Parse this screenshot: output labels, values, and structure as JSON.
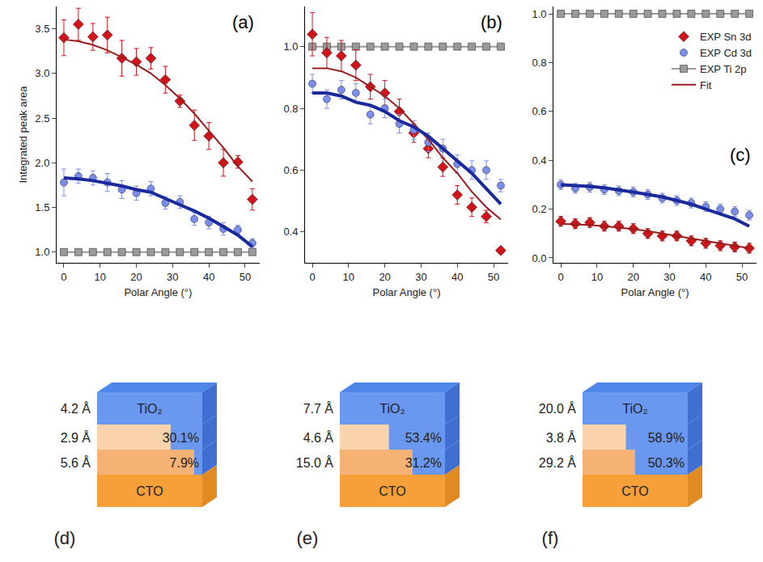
{
  "chart_data": [
    {
      "type": "scatter",
      "annotation": "(a)",
      "xlabel": "Polar Angle (°)",
      "ylabel": "Integrated peak area",
      "grid": false,
      "xlim": [
        -2,
        54
      ],
      "xticks": [
        0,
        10,
        20,
        30,
        40,
        50
      ],
      "ylim": [
        0.88,
        3.75
      ],
      "yticks": [
        {
          "value": 1.0,
          "label": "1.0"
        },
        {
          "value": 1.5,
          "label": "1.5"
        },
        {
          "value": 2.0,
          "label": "2.0"
        },
        {
          "value": 2.5,
          "label": "2.5"
        },
        {
          "value": 3.0,
          "label": "3.0"
        },
        {
          "value": 3.5,
          "label": "3.5"
        }
      ],
      "series": [
        {
          "name": "EXP Ti 2p",
          "type": "line",
          "marker": "square",
          "line_style": "solid",
          "color": "#9a9a9a",
          "x": [
            0,
            4,
            8,
            12,
            16,
            20,
            24,
            28,
            32,
            36,
            40,
            44,
            48,
            52
          ],
          "values": [
            1.0,
            1.0,
            1.0,
            1.0,
            1.0,
            1.0,
            1.0,
            1.0,
            1.0,
            1.0,
            1.0,
            1.0,
            1.0,
            1.0
          ]
        },
        {
          "name": "EXP Sn 3d",
          "type": "scatter",
          "marker": "diamond",
          "color": "#d0141a",
          "x": [
            0,
            4,
            8,
            12,
            16,
            20,
            24,
            28,
            32,
            36,
            40,
            44,
            48,
            52
          ],
          "values": [
            3.4,
            3.55,
            3.41,
            3.43,
            3.17,
            3.13,
            3.17,
            2.93,
            2.69,
            2.42,
            2.3,
            2.0,
            2.01,
            1.59
          ],
          "errors": [
            0.2,
            0.18,
            0.15,
            0.2,
            0.2,
            0.15,
            0.12,
            0.15,
            0.07,
            0.17,
            0.15,
            0.15,
            0.07,
            0.12
          ]
        },
        {
          "name": "EXP Cd 3d",
          "type": "scatter",
          "marker": "circle",
          "color": "#7b8ef0",
          "x": [
            0,
            4,
            8,
            12,
            16,
            20,
            24,
            28,
            32,
            36,
            40,
            44,
            48,
            52
          ],
          "values": [
            1.78,
            1.85,
            1.83,
            1.78,
            1.7,
            1.66,
            1.71,
            1.55,
            1.56,
            1.37,
            1.33,
            1.26,
            1.25,
            1.1
          ],
          "errors": [
            0.15,
            0.08,
            0.08,
            0.1,
            0.1,
            0.08,
            0.08,
            0.07,
            0.07,
            0.07,
            0.07,
            0.07,
            0.05,
            0.05
          ]
        },
        {
          "name": "Fit",
          "type": "line",
          "line_style": "solid",
          "color": "#9b1c1c",
          "x": [
            0,
            4,
            8,
            12,
            16,
            20,
            24,
            28,
            32,
            36,
            40,
            44,
            48,
            52
          ],
          "values": [
            3.38,
            3.36,
            3.32,
            3.26,
            3.18,
            3.1,
            3.0,
            2.87,
            2.72,
            2.55,
            2.36,
            2.17,
            1.96,
            1.79
          ]
        },
        {
          "type": "line",
          "line_style": "solid",
          "color": "#1a2a9c",
          "x": [
            0,
            4,
            8,
            12,
            16,
            20,
            24,
            28,
            32,
            36,
            40,
            44,
            48,
            52
          ],
          "values": [
            1.83,
            1.82,
            1.8,
            1.77,
            1.74,
            1.7,
            1.67,
            1.6,
            1.53,
            1.46,
            1.38,
            1.29,
            1.19,
            1.06
          ]
        }
      ]
    },
    {
      "type": "scatter",
      "annotation": "(b)",
      "xlabel": "Polar Angle (°)",
      "grid": false,
      "xlim": [
        -2,
        54
      ],
      "xticks": [
        0,
        10,
        20,
        30,
        40,
        50
      ],
      "ylim": [
        0.3,
        1.13
      ],
      "yticks": [
        {
          "value": 0.4,
          "label": "0.4"
        },
        {
          "value": 0.6,
          "label": "0.6"
        },
        {
          "value": 0.8,
          "label": "0.8"
        },
        {
          "value": 1.0,
          "label": "1.0"
        }
      ],
      "series": [
        {
          "name": "EXP Ti 2p",
          "type": "line",
          "marker": "square",
          "line_style": "solid",
          "color": "#9a9a9a",
          "x": [
            0,
            4,
            8,
            12,
            16,
            20,
            24,
            28,
            32,
            36,
            40,
            44,
            48,
            52
          ],
          "values": [
            1.0,
            1.0,
            1.0,
            1.0,
            1.0,
            1.0,
            1.0,
            1.0,
            1.0,
            1.0,
            1.0,
            1.0,
            1.0,
            1.0
          ]
        },
        {
          "name": "EXP Sn 3d",
          "type": "scatter",
          "marker": "diamond",
          "color": "#d0141a",
          "x": [
            0,
            4,
            8,
            12,
            16,
            20,
            24,
            28,
            32,
            36,
            40,
            44,
            48,
            52
          ],
          "values": [
            1.04,
            0.98,
            0.97,
            0.94,
            0.87,
            0.85,
            0.79,
            0.72,
            0.67,
            0.61,
            0.52,
            0.48,
            0.45,
            0.34
          ],
          "errors": [
            0.07,
            0.05,
            0.05,
            0.05,
            0.04,
            0.04,
            0.04,
            0.03,
            0.03,
            0.03,
            0.03,
            0.03,
            0.02,
            0.01
          ]
        },
        {
          "name": "EXP Cd 3d",
          "type": "scatter",
          "marker": "circle",
          "color": "#7b8ef0",
          "x": [
            0,
            4,
            8,
            12,
            16,
            20,
            24,
            28,
            32,
            36,
            40,
            44,
            48,
            52
          ],
          "values": [
            0.88,
            0.83,
            0.86,
            0.85,
            0.78,
            0.8,
            0.75,
            0.73,
            0.69,
            0.67,
            0.62,
            0.6,
            0.6,
            0.55
          ],
          "errors": [
            0.03,
            0.03,
            0.03,
            0.03,
            0.03,
            0.03,
            0.03,
            0.03,
            0.03,
            0.03,
            0.03,
            0.03,
            0.03,
            0.02
          ]
        },
        {
          "name": "Fit",
          "type": "line",
          "line_style": "solid",
          "color": "#9b1c1c",
          "x": [
            0,
            4,
            8,
            12,
            16,
            20,
            24,
            28,
            32,
            36,
            40,
            44,
            48,
            52
          ],
          "values": [
            0.93,
            0.93,
            0.92,
            0.9,
            0.87,
            0.84,
            0.8,
            0.75,
            0.7,
            0.64,
            0.59,
            0.53,
            0.48,
            0.44
          ]
        },
        {
          "type": "line",
          "line_style": "solid",
          "color": "#1a2a9c",
          "x": [
            0,
            4,
            8,
            12,
            16,
            20,
            24,
            28,
            32,
            36,
            40,
            44,
            48,
            52
          ],
          "values": [
            0.85,
            0.85,
            0.84,
            0.82,
            0.81,
            0.79,
            0.76,
            0.74,
            0.71,
            0.67,
            0.63,
            0.59,
            0.54,
            0.49
          ]
        }
      ]
    },
    {
      "type": "scatter",
      "annotation": "(c)",
      "xlabel": "Polar Angle (°)",
      "grid": false,
      "legend": "upper right",
      "xlim": [
        -2,
        54
      ],
      "xticks": [
        0,
        10,
        20,
        30,
        40,
        50
      ],
      "ylim": [
        -0.02,
        1.03
      ],
      "yticks": [
        {
          "value": 0.0,
          "label": "0.0"
        },
        {
          "value": 0.2,
          "label": "0.2"
        },
        {
          "value": 0.4,
          "label": "0.4"
        },
        {
          "value": 0.6,
          "label": "0.6"
        },
        {
          "value": 0.8,
          "label": "0.8"
        },
        {
          "value": 1.0,
          "label": "1.0"
        }
      ],
      "series": [
        {
          "name": "EXP Sn 3d",
          "type": "scatter",
          "marker": "diamond",
          "color": "#d0141a",
          "x": [
            0,
            4,
            8,
            12,
            16,
            20,
            24,
            28,
            32,
            36,
            40,
            44,
            48,
            52
          ],
          "values": [
            0.15,
            0.14,
            0.145,
            0.13,
            0.13,
            0.12,
            0.1,
            0.09,
            0.09,
            0.07,
            0.06,
            0.05,
            0.045,
            0.04
          ],
          "errors": [
            0.02,
            0.02,
            0.02,
            0.02,
            0.02,
            0.02,
            0.02,
            0.02,
            0.02,
            0.02,
            0.02,
            0.02,
            0.02,
            0.02
          ]
        },
        {
          "name": "EXP Cd 3d",
          "type": "scatter",
          "marker": "circle",
          "color": "#7b8ef0",
          "x": [
            0,
            4,
            8,
            12,
            16,
            20,
            24,
            28,
            32,
            36,
            40,
            44,
            48,
            52
          ],
          "values": [
            0.3,
            0.285,
            0.29,
            0.28,
            0.275,
            0.27,
            0.26,
            0.245,
            0.235,
            0.225,
            0.21,
            0.2,
            0.19,
            0.175
          ],
          "errors": [
            0.02,
            0.02,
            0.02,
            0.02,
            0.02,
            0.02,
            0.02,
            0.02,
            0.02,
            0.02,
            0.02,
            0.02,
            0.02,
            0.02
          ]
        },
        {
          "name": "EXP Ti 2p",
          "type": "line",
          "marker": "square",
          "line_style": "solid",
          "color": "#9a9a9a",
          "x": [
            0,
            4,
            8,
            12,
            16,
            20,
            24,
            28,
            32,
            36,
            40,
            44,
            48,
            52
          ],
          "values": [
            1.0,
            1.0,
            1.0,
            1.0,
            1.0,
            1.0,
            1.0,
            1.0,
            1.0,
            1.0,
            1.0,
            1.0,
            1.0,
            1.0
          ]
        },
        {
          "name": "Fit",
          "type": "line",
          "line_style": "solid",
          "color": "#9b1c1c",
          "x": [
            0,
            4,
            8,
            12,
            16,
            20,
            24,
            28,
            32,
            36,
            40,
            44,
            48,
            52
          ],
          "values": [
            0.14,
            0.138,
            0.135,
            0.13,
            0.125,
            0.118,
            0.11,
            0.1,
            0.09,
            0.08,
            0.07,
            0.06,
            0.05,
            0.04
          ]
        },
        {
          "type": "line",
          "line_style": "solid",
          "color": "#1a2a9c",
          "x": [
            0,
            4,
            8,
            12,
            16,
            20,
            24,
            28,
            32,
            36,
            40,
            44,
            48,
            52
          ],
          "values": [
            0.3,
            0.297,
            0.293,
            0.287,
            0.28,
            0.27,
            0.26,
            0.25,
            0.235,
            0.22,
            0.2,
            0.18,
            0.16,
            0.13
          ]
        }
      ]
    }
  ],
  "diagrams": [
    {
      "caption": "(d)",
      "layers": [
        {
          "label": "TiO₂",
          "thickness": "4.2 Å"
        },
        {
          "thickness": "2.9 Å",
          "coverage": {
            "value": 30.1,
            "label": "30.1%"
          }
        },
        {
          "thickness": "5.6 Å",
          "coverage": {
            "value": 7.9,
            "label": "7.9%"
          }
        },
        {
          "label": "CTO"
        }
      ]
    },
    {
      "caption": "(e)",
      "layers": [
        {
          "label": "TiO₂",
          "thickness": "7.7 Å"
        },
        {
          "thickness": "4.6 Å",
          "coverage": {
            "value": 53.4,
            "label": "53.4%"
          }
        },
        {
          "thickness": "15.0 Å",
          "coverage": {
            "value": 31.2,
            "label": "31.2%"
          }
        },
        {
          "label": "CTO"
        }
      ]
    },
    {
      "caption": "(f)",
      "layers": [
        {
          "label": "TiO₂",
          "thickness": "20.0 Å"
        },
        {
          "thickness": "3.8 Å",
          "coverage": {
            "value": 58.9,
            "label": "58.9%"
          }
        },
        {
          "thickness": "29.2 Å",
          "coverage": {
            "value": 50.3,
            "label": "50.3%"
          }
        },
        {
          "label": "CTO"
        }
      ]
    }
  ]
}
